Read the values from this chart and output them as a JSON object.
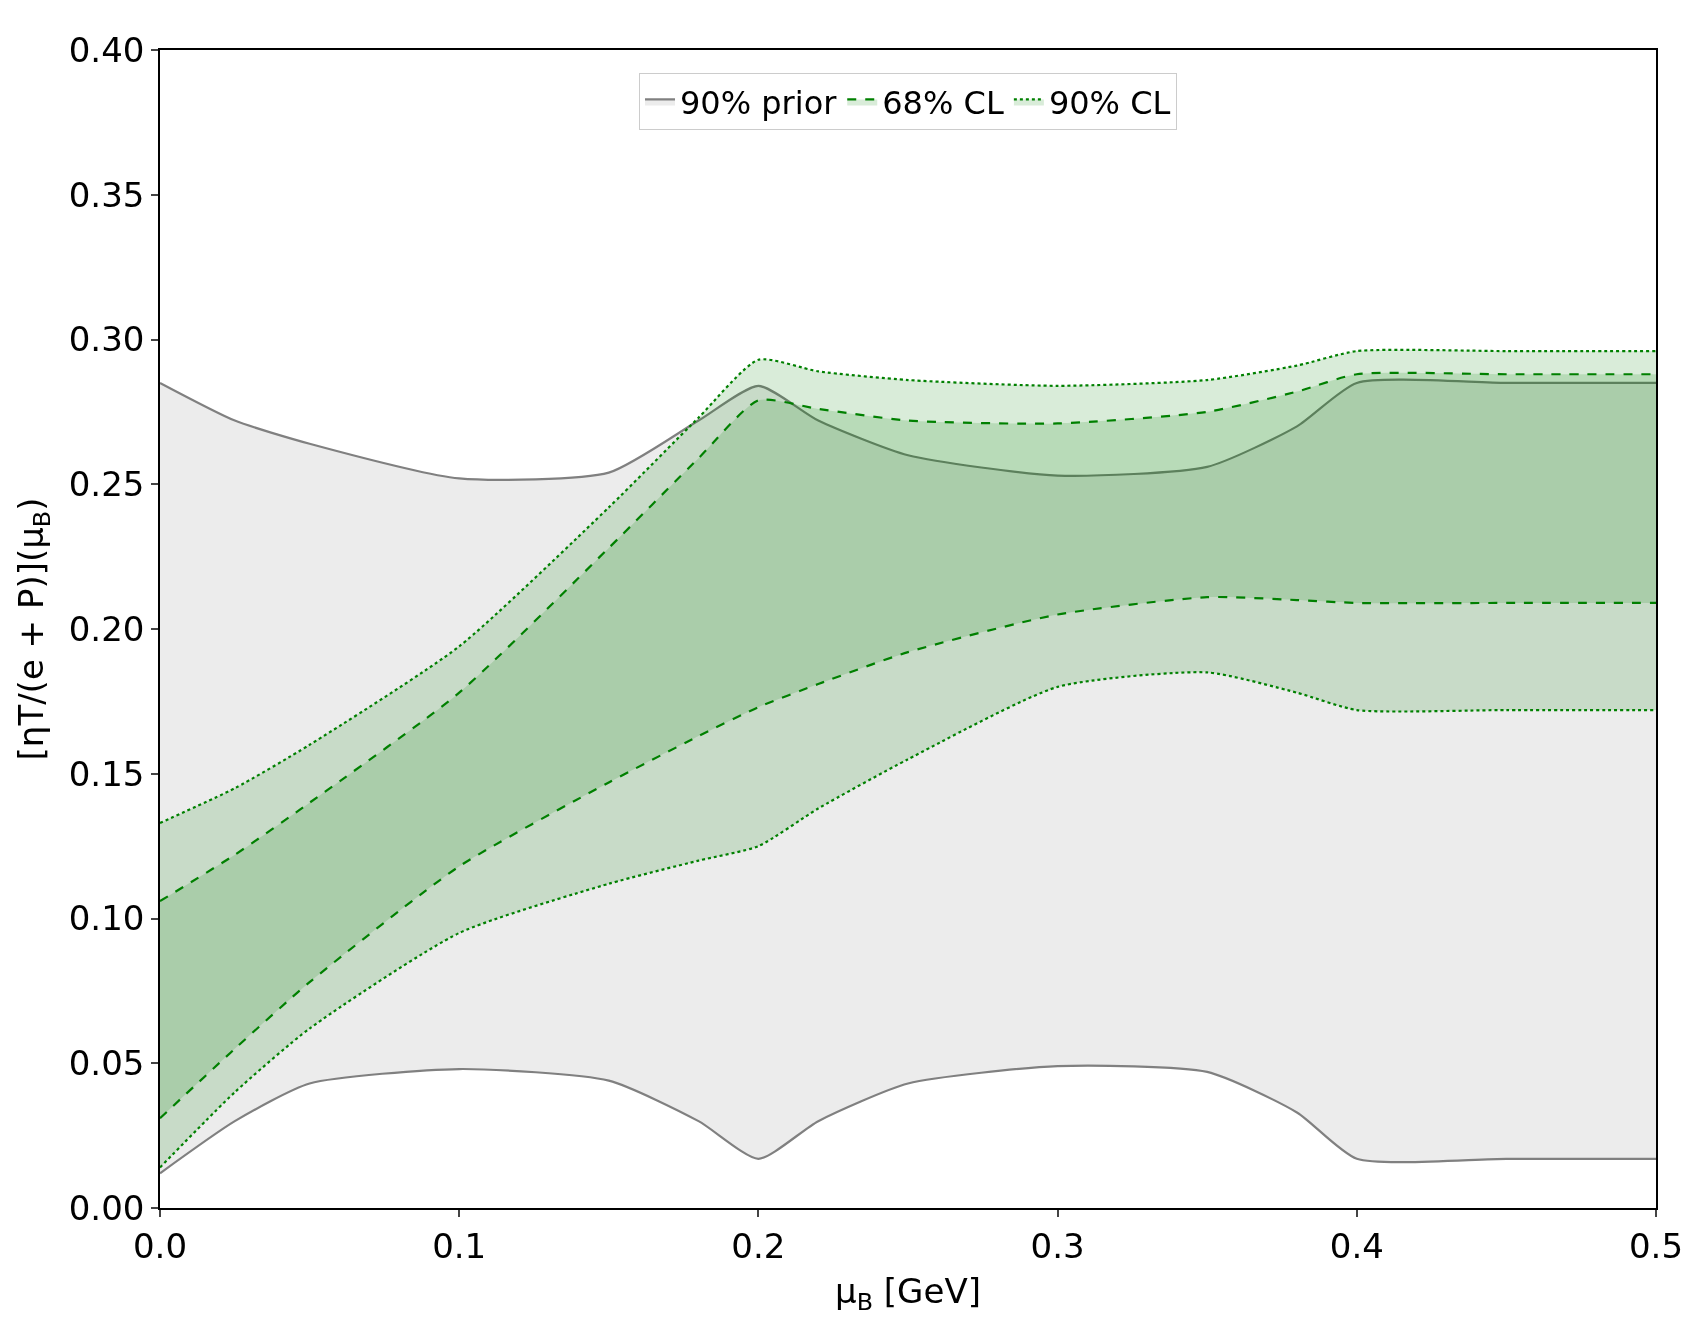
{
  "chart_data": {
    "type": "line",
    "xlabel": "μ$_{B}$ [GeV]",
    "ylabel": "[ηT/(e + P)](μ$_{B}$)",
    "x": [
      0,
      0.025,
      0.05,
      0.1,
      0.15,
      0.18,
      0.2,
      0.22,
      0.25,
      0.3,
      0.35,
      0.38,
      0.4,
      0.45,
      0.5
    ],
    "series": [
      {
        "color": "#808080",
        "line_style": "solid",
        "values": [
          0.012,
          0.03,
          0.043,
          0.048,
          0.044,
          0.03,
          0.017,
          0.03,
          0.043,
          0.049,
          0.047,
          0.033,
          0.017,
          0.017,
          0.017
        ]
      },
      {
        "name": "90% prior",
        "type": "area",
        "color": "#808080",
        "line_style": "solid",
        "values": [
          0.285,
          0.272,
          0.264,
          0.252,
          0.254,
          0.272,
          0.284,
          0.272,
          0.26,
          0.253,
          0.256,
          0.27,
          0.285,
          0.285,
          0.285
        ]
      },
      {
        "color": "#008000",
        "line_style": "dashed",
        "values": [
          0.031,
          0.055,
          0.078,
          0.118,
          0.147,
          0.163,
          0.173,
          0.181,
          0.192,
          0.205,
          0.211,
          0.21,
          0.209,
          0.209,
          0.209
        ]
      },
      {
        "name": "68% CL",
        "type": "area",
        "color": "#008000",
        "line_style": "dashed",
        "values": [
          0.106,
          0.122,
          0.14,
          0.178,
          0.228,
          0.259,
          0.279,
          0.276,
          0.272,
          0.271,
          0.275,
          0.282,
          0.288,
          0.288,
          0.288
        ]
      },
      {
        "color": "#008000",
        "line_style": "dotted",
        "values": [
          0.014,
          0.04,
          0.062,
          0.095,
          0.112,
          0.12,
          0.125,
          0.138,
          0.155,
          0.18,
          0.185,
          0.178,
          0.172,
          0.172,
          0.172
        ]
      },
      {
        "name": "90% CL",
        "type": "area",
        "color": "#008000",
        "line_style": "dotted",
        "values": [
          0.133,
          0.145,
          0.16,
          0.194,
          0.242,
          0.273,
          0.293,
          0.289,
          0.286,
          0.284,
          0.286,
          0.291,
          0.296,
          0.296,
          0.296
        ]
      }
    ],
    "xlim": [
      0,
      0.5
    ],
    "xticks": [
      {
        "value": 0,
        "label": "0.0"
      },
      0.1,
      0.2,
      0.3,
      0.4,
      0.5
    ],
    "ylim": [
      0,
      0.4
    ],
    "yticks": [
      {
        "value": 0,
        "label": "0.00"
      },
      0.05,
      {
        "value": 0.1,
        "label": "0.10"
      },
      0.15,
      {
        "value": 0.2,
        "label": "0.20"
      },
      0.25,
      {
        "value": 0.3,
        "label": "0.30"
      },
      0.35,
      {
        "value": 0.4,
        "label": "0.40"
      }
    ],
    "legend": "top"
  }
}
